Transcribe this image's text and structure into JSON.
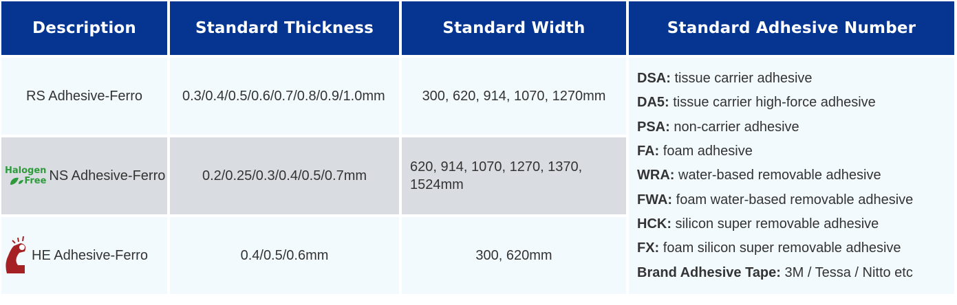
{
  "headers": [
    "Description",
    "Standard Thickness",
    "Standard Width",
    "Standard Adhesive Number"
  ],
  "rows": [
    {
      "description": "RS Adhesive-Ferro",
      "thickness": "0.3/0.4/0.5/0.6/0.7/0.8/0.9/1.0mm",
      "width": "300, 620, 914, 1070, 1270mm"
    },
    {
      "description": "NS Adhesive-Ferro",
      "badge": {
        "line1": "Halogen",
        "line2": "Free",
        "color": "#2e9a3c"
      },
      "thickness": "0.2/0.25/0.3/0.4/0.5/0.7mm",
      "width": "620, 914, 1070, 1270, 1370, 1524mm"
    },
    {
      "description": "HE Adhesive-Ferro",
      "icon": "strong-arm-icon",
      "icon_color": "#a52124",
      "thickness": "0.4/0.5/0.6mm",
      "width": "300, 620mm"
    }
  ],
  "adhesives": [
    {
      "code": "DSA:",
      "desc": " tissue carrier adhesive"
    },
    {
      "code": "DA5:",
      "desc": " tissue carrier high-force adhesive"
    },
    {
      "code": "PSA:",
      "desc": " non-carrier adhesive"
    },
    {
      "code": "FA:",
      "desc": " foam adhesive"
    },
    {
      "code": "WRA:",
      "desc": " water-based removable adhesive"
    },
    {
      "code": "FWA:",
      "desc": " foam water-based removable adhesive"
    },
    {
      "code": "HCK:",
      "desc": " silicon super removable adhesive"
    },
    {
      "code": "FX:",
      "desc": " foam silicon super removable adhesive"
    },
    {
      "code": "Brand Adhesive Tape:",
      "desc": " 3M / Tessa / Nitto etc"
    }
  ],
  "colors": {
    "header": "#063591",
    "row_light": "#f2fafe",
    "row_gray": "#d9dde1"
  }
}
